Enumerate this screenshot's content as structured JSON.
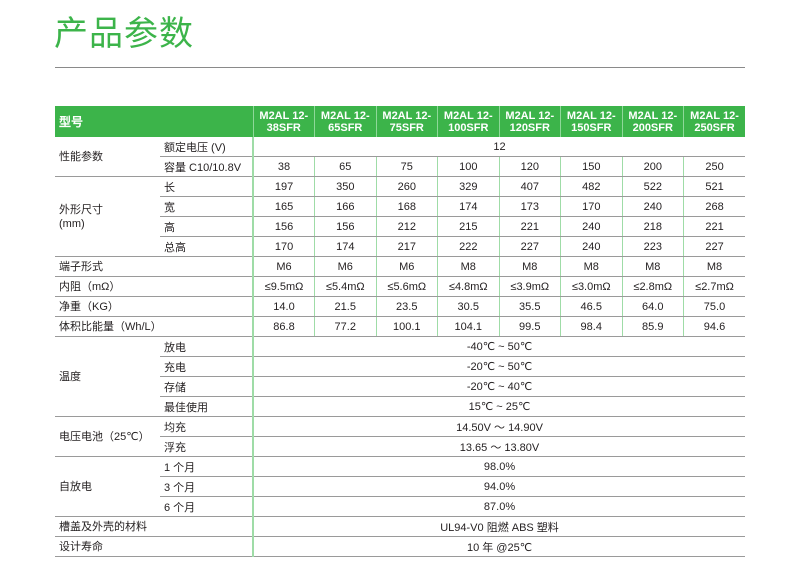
{
  "title": "产品参数",
  "header": {
    "label": "型号",
    "models": [
      "M2AL 12-38SFR",
      "M2AL 12-65SFR",
      "M2AL 12-75SFR",
      "M2AL 12-100SFR",
      "M2AL 12-120SFR",
      "M2AL 12-150SFR",
      "M2AL 12-200SFR",
      "M2AL 12-250SFR"
    ]
  },
  "groups": [
    {
      "label": "性能参数",
      "rows": [
        {
          "sub": "额定电压 (V)",
          "span": "12"
        },
        {
          "sub": "容量 C10/10.8V",
          "values": [
            "38",
            "65",
            "75",
            "100",
            "120",
            "150",
            "200",
            "250"
          ]
        }
      ]
    },
    {
      "label": "外形尺寸\n(mm)",
      "rows": [
        {
          "sub": "长",
          "values": [
            "197",
            "350",
            "260",
            "329",
            "407",
            "482",
            "522",
            "521"
          ]
        },
        {
          "sub": "宽",
          "values": [
            "165",
            "166",
            "168",
            "174",
            "173",
            "170",
            "240",
            "268"
          ]
        },
        {
          "sub": "高",
          "values": [
            "156",
            "156",
            "212",
            "215",
            "221",
            "240",
            "218",
            "221"
          ]
        },
        {
          "sub": "总高",
          "values": [
            "170",
            "174",
            "217",
            "222",
            "227",
            "240",
            "223",
            "227"
          ]
        }
      ]
    },
    {
      "label": "端子形式",
      "rows": [
        {
          "sub": "",
          "values": [
            "M6",
            "M6",
            "M6",
            "M8",
            "M8",
            "M8",
            "M8",
            "M8"
          ]
        }
      ]
    },
    {
      "label": "内阻（mΩ）",
      "rows": [
        {
          "sub": "",
          "values": [
            "≤9.5mΩ",
            "≤5.4mΩ",
            "≤5.6mΩ",
            "≤4.8mΩ",
            "≤3.9mΩ",
            "≤3.0mΩ",
            "≤2.8mΩ",
            "≤2.7mΩ"
          ]
        }
      ]
    },
    {
      "label": "净重（KG）",
      "rows": [
        {
          "sub": "",
          "values": [
            "14.0",
            "21.5",
            "23.5",
            "30.5",
            "35.5",
            "46.5",
            "64.0",
            "75.0"
          ]
        }
      ]
    },
    {
      "label": "体积比能量（Wh/L）",
      "rows": [
        {
          "sub": "",
          "values": [
            "86.8",
            "77.2",
            "100.1",
            "104.1",
            "99.5",
            "98.4",
            "85.9",
            "94.6"
          ]
        }
      ]
    },
    {
      "label": "温度",
      "rows": [
        {
          "sub": "放电",
          "span": "-40℃ ~ 50℃"
        },
        {
          "sub": "充电",
          "span": "-20℃ ~ 50℃"
        },
        {
          "sub": "存储",
          "span": "-20℃ ~ 40℃"
        },
        {
          "sub": "最佳使用",
          "span": "15℃ ~ 25℃"
        }
      ]
    },
    {
      "label": "电压电池（25℃）",
      "rows": [
        {
          "sub": "均充",
          "span": "14.50V ～ 14.90V"
        },
        {
          "sub": "浮充",
          "span": "13.65 ～ 13.80V"
        }
      ]
    },
    {
      "label": "自放电",
      "rows": [
        {
          "sub": "1 个月",
          "span": "98.0%"
        },
        {
          "sub": "3 个月",
          "span": "94.0%"
        },
        {
          "sub": "6 个月",
          "span": "87.0%"
        }
      ]
    },
    {
      "label": "槽盖及外壳的材料",
      "rows": [
        {
          "sub": "",
          "span": "UL94-V0 阻燃 ABS 塑料"
        }
      ]
    },
    {
      "label": "设计寿命",
      "rows": [
        {
          "sub": "",
          "span": "10 年 @25℃"
        }
      ]
    }
  ],
  "colors": {
    "accent": "#3cb44a"
  }
}
